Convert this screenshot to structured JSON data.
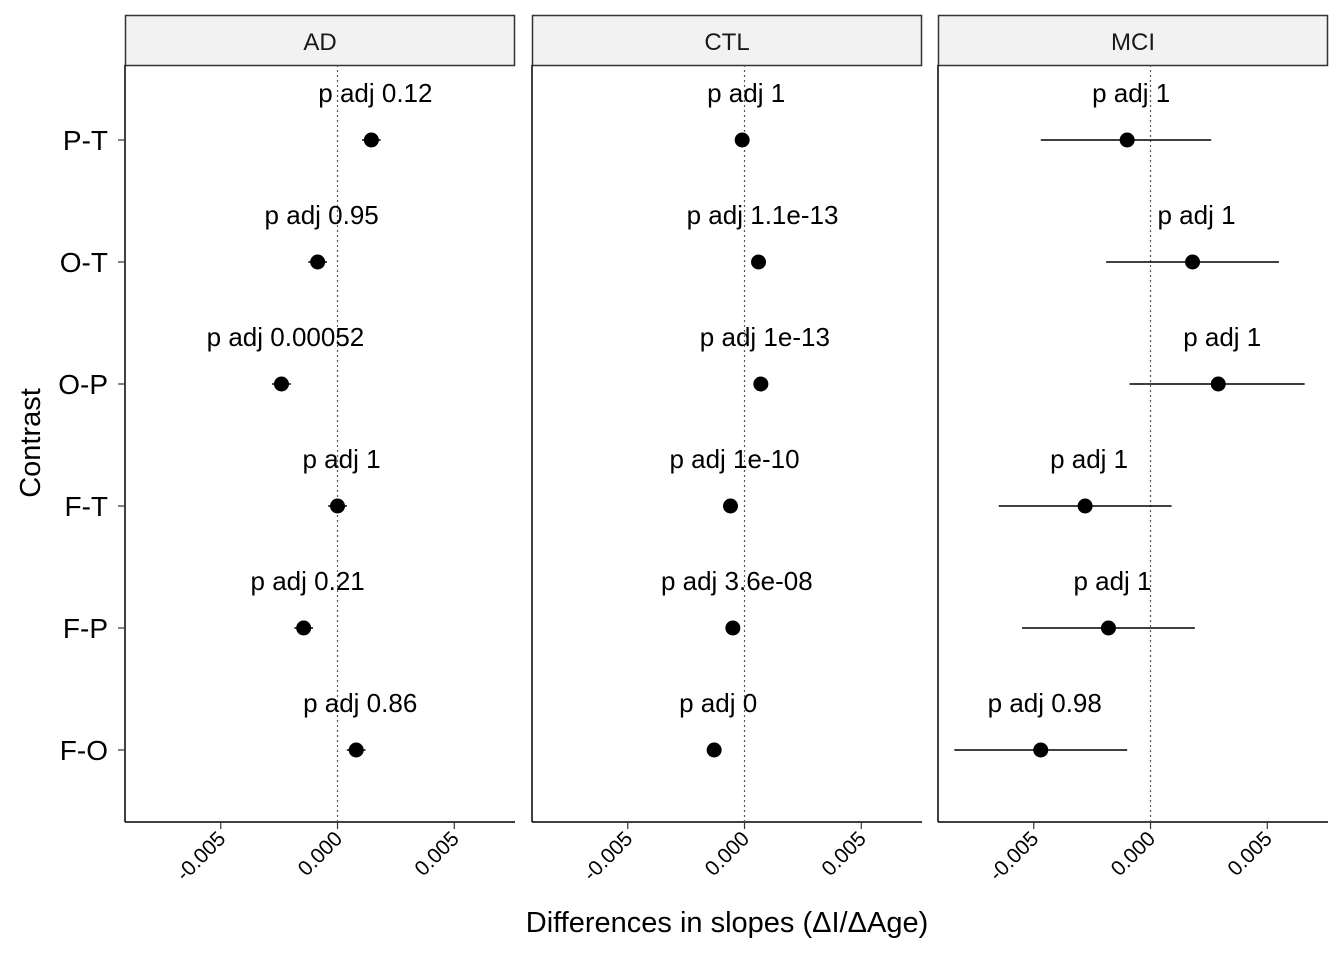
{
  "chart_data": {
    "type": "scatter",
    "subtype": "faceted-dot-with-errorbars",
    "title": "",
    "xlabel": "Differences in slopes (ΔI/ΔAge)",
    "ylabel": "Contrast",
    "xlim": [
      -0.0091,
      0.0076
    ],
    "x_ticks": [
      -0.005,
      0.0,
      0.005
    ],
    "x_tick_labels": [
      "-0.005",
      "0.000",
      "0.005"
    ],
    "reference_line_x": 0,
    "categories": [
      "P-T",
      "O-T",
      "O-P",
      "F-T",
      "F-P",
      "F-O"
    ],
    "grid": false,
    "colors": {
      "point": "#000000",
      "strip_fill": "#f2f2f2",
      "strip_border": "#333333",
      "reference_line": "#555555"
    },
    "panels": [
      {
        "name": "AD",
        "points": [
          {
            "contrast": "P-T",
            "estimate": 0.00145,
            "lower": 0.00105,
            "upper": 0.00185,
            "label": "p adj 0.12"
          },
          {
            "contrast": "O-T",
            "estimate": -0.00085,
            "lower": -0.00125,
            "upper": -0.00045,
            "label": "p adj 0.95"
          },
          {
            "contrast": "O-P",
            "estimate": -0.0024,
            "lower": -0.0028,
            "upper": -0.002,
            "label": "p adj 0.00052"
          },
          {
            "contrast": "F-T",
            "estimate": 0.0,
            "lower": -0.0004,
            "upper": 0.0004,
            "label": "p adj 1"
          },
          {
            "contrast": "F-P",
            "estimate": -0.00145,
            "lower": -0.00185,
            "upper": -0.00105,
            "label": "p adj 0.21"
          },
          {
            "contrast": "F-O",
            "estimate": 0.0008,
            "lower": 0.0004,
            "upper": 0.0012,
            "label": "p adj 0.86"
          }
        ]
      },
      {
        "name": "CTL",
        "points": [
          {
            "contrast": "P-T",
            "estimate": -0.0001,
            "lower": -0.0001,
            "upper": -0.0001,
            "label": "p adj 1"
          },
          {
            "contrast": "O-T",
            "estimate": 0.0006,
            "lower": 0.0006,
            "upper": 0.0006,
            "label": "p adj 1.1e-13"
          },
          {
            "contrast": "O-P",
            "estimate": 0.0007,
            "lower": 0.0007,
            "upper": 0.0007,
            "label": "p adj 1e-13"
          },
          {
            "contrast": "F-T",
            "estimate": -0.0006,
            "lower": -0.0006,
            "upper": -0.0006,
            "label": "p adj 1e-10"
          },
          {
            "contrast": "F-P",
            "estimate": -0.0005,
            "lower": -0.0005,
            "upper": -0.0005,
            "label": "p adj 3.6e-08"
          },
          {
            "contrast": "F-O",
            "estimate": -0.0013,
            "lower": -0.0013,
            "upper": -0.0013,
            "label": "p adj 0"
          }
        ]
      },
      {
        "name": "MCI",
        "points": [
          {
            "contrast": "P-T",
            "estimate": -0.001,
            "lower": -0.0047,
            "upper": 0.0026,
            "label": "p adj 1"
          },
          {
            "contrast": "O-T",
            "estimate": 0.0018,
            "lower": -0.0019,
            "upper": 0.0055,
            "label": "p adj 1"
          },
          {
            "contrast": "O-P",
            "estimate": 0.0029,
            "lower": -0.0009,
            "upper": 0.0066,
            "label": "p adj 1"
          },
          {
            "contrast": "F-T",
            "estimate": -0.0028,
            "lower": -0.0065,
            "upper": 0.0009,
            "label": "p adj 1"
          },
          {
            "contrast": "F-P",
            "estimate": -0.0018,
            "lower": -0.0055,
            "upper": 0.0019,
            "label": "p adj 1"
          },
          {
            "contrast": "F-O",
            "estimate": -0.0047,
            "lower": -0.0084,
            "upper": -0.001,
            "label": "p adj 0.98"
          }
        ]
      }
    ]
  }
}
